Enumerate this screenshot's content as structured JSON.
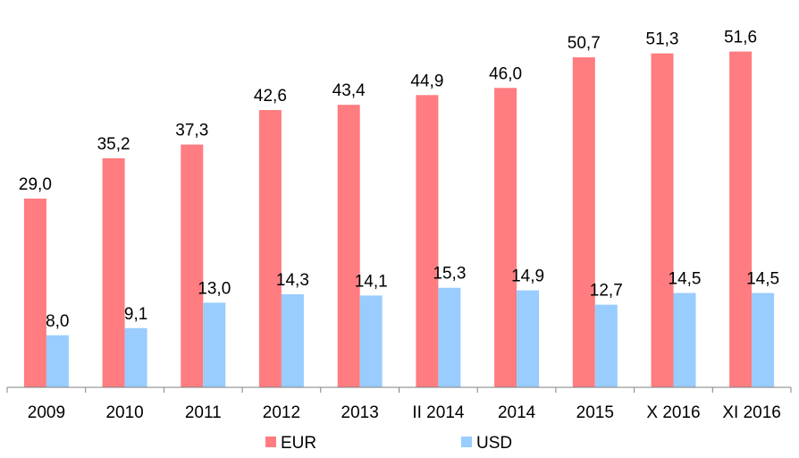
{
  "chart_data": {
    "type": "bar",
    "categories": [
      "2009",
      "2010",
      "2011",
      "2012",
      "2013",
      "II 2014",
      "2014",
      "2015",
      "X 2016",
      "XI 2016"
    ],
    "series": [
      {
        "name": "EUR",
        "color": "#ff7c80",
        "values": [
          29.0,
          35.2,
          37.3,
          42.6,
          43.4,
          44.9,
          46.0,
          50.7,
          51.3,
          51.6
        ],
        "labels": [
          "29,0",
          "35,2",
          "37,3",
          "42,6",
          "43,4",
          "44,9",
          "46,0",
          "50,7",
          "51,3",
          "51,6"
        ]
      },
      {
        "name": "USD",
        "color": "#99ccff",
        "values": [
          8.0,
          9.1,
          13.0,
          14.3,
          14.1,
          15.3,
          14.9,
          12.7,
          14.5,
          14.5
        ],
        "labels": [
          "8,0",
          "9,1",
          "13,0",
          "14,3",
          "14,1",
          "15,3",
          "14,9",
          "12,7",
          "14,5",
          "14,5"
        ]
      }
    ],
    "ylim": [
      0,
      58
    ],
    "grid": false,
    "legend_position": "bottom"
  }
}
